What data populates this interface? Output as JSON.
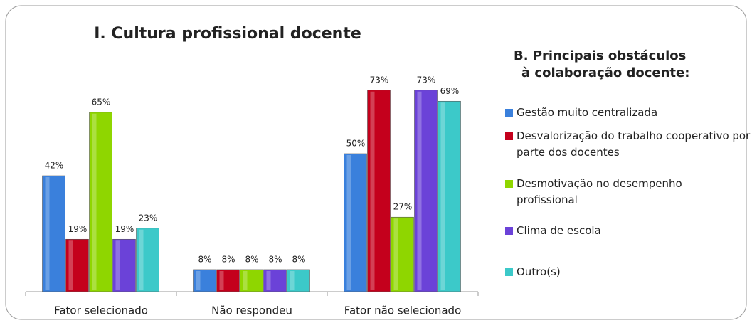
{
  "chart_data": {
    "type": "bar",
    "title": "I. Cultura profissional docente",
    "legend_title": [
      "B. Principais obstáculos",
      "à colaboração docente:"
    ],
    "legend_position": "right",
    "categories": [
      "Fator selecionado",
      "Não respondeu",
      "Fator não selecionado"
    ],
    "series": [
      {
        "name": "Gestão muito centralizada",
        "color": "#3a80dc",
        "values": [
          42,
          8,
          50
        ],
        "value_labels": [
          "42%",
          "8%",
          "50%"
        ]
      },
      {
        "name": "Desvalorização do trabalho cooperativo por parte dos docentes",
        "color": "#c4001c",
        "values": [
          19,
          8,
          73
        ],
        "value_labels": [
          "19%",
          "8%",
          "73%"
        ]
      },
      {
        "name": "Desmotivação no desempenho profissional",
        "color": "#8fd600",
        "values": [
          65,
          8,
          27
        ],
        "value_labels": [
          "65%",
          "8%",
          "27%"
        ]
      },
      {
        "name": "Clima de escola",
        "color": "#6b42d8",
        "values": [
          19,
          8,
          73
        ],
        "value_labels": [
          "19%",
          "8%",
          "73%"
        ]
      },
      {
        "name": "Outro(s)",
        "color": "#3cc9c9",
        "values": [
          23,
          8,
          69
        ],
        "value_labels": [
          "23%",
          "8%",
          "69%"
        ]
      }
    ]
  }
}
